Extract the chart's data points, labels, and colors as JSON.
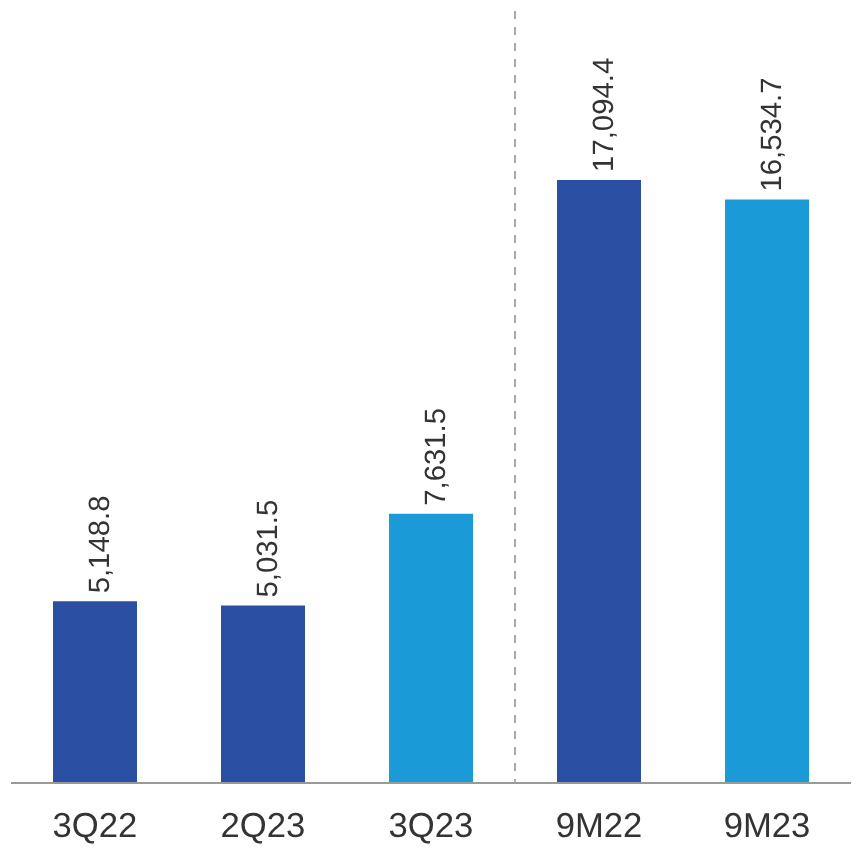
{
  "chart_data": {
    "type": "bar",
    "categories": [
      "3Q22",
      "2Q23",
      "3Q23",
      "9M22",
      "9M23"
    ],
    "values": [
      5148.8,
      5031.5,
      7631.5,
      17094.4,
      16534.7
    ],
    "colors": [
      "#2a4fa3",
      "#2a4fa3",
      "#1a9bd7",
      "#2a4fa3",
      "#1a9bd7"
    ],
    "value_labels": [
      "5,148.8",
      "5,031.5",
      "7,631.5",
      "17,094.4",
      "16,534.7"
    ],
    "grid": false
  }
}
